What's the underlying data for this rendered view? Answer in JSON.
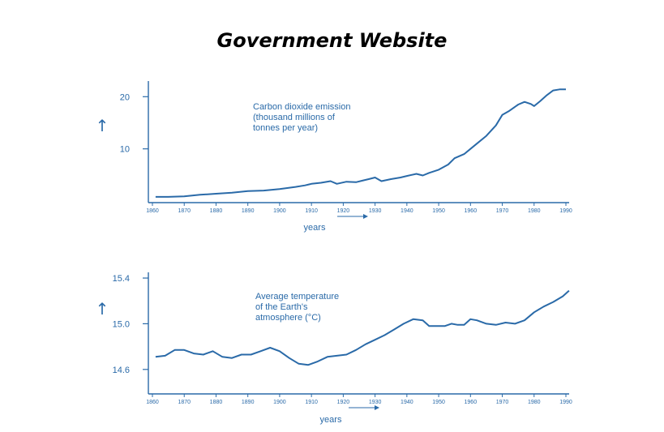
{
  "page": {
    "title": "Government Website"
  },
  "colors": {
    "line": "#2a6aa8",
    "axis": "#2a6aa8",
    "text": "#2a6aa8"
  },
  "chart_data": [
    {
      "type": "line",
      "title_lines": [
        "Carbon dioxide emission",
        "(thousand millions of",
        "tonnes per year)"
      ],
      "xlabel": "years",
      "ylabel_arrow": "↑",
      "xlim": [
        1860,
        1990
      ],
      "ylim": [
        0,
        23
      ],
      "x_ticks": [
        1860,
        1870,
        1880,
        1890,
        1900,
        1910,
        1920,
        1930,
        1940,
        1950,
        1960,
        1970,
        1980,
        1990
      ],
      "x_tick_labels": [
        "1860",
        "1870",
        "1880",
        "1890",
        "1900",
        "1910",
        "1920",
        "1930",
        "1940",
        "1950",
        "1960",
        "1970",
        "1980",
        "1990"
      ],
      "y_ticks": [
        10,
        20
      ],
      "y_tick_labels": [
        "10",
        "20"
      ],
      "series": [
        {
          "name": "Carbon dioxide emission",
          "x": [
            1861,
            1865,
            1870,
            1875,
            1880,
            1885,
            1890,
            1895,
            1900,
            1905,
            1908,
            1910,
            1913,
            1916,
            1918,
            1921,
            1924,
            1926,
            1928,
            1930,
            1932,
            1935,
            1938,
            1940,
            1943,
            1945,
            1947,
            1950,
            1953,
            1955,
            1958,
            1960,
            1962,
            1965,
            1968,
            1970,
            1972,
            1975,
            1977,
            1979,
            1980,
            1982,
            1984,
            1986,
            1988,
            1990
          ],
          "y": [
            0.8,
            0.8,
            0.9,
            1.2,
            1.4,
            1.6,
            1.9,
            2.0,
            2.3,
            2.7,
            3.0,
            3.3,
            3.5,
            3.8,
            3.3,
            3.7,
            3.6,
            3.9,
            4.2,
            4.5,
            3.8,
            4.2,
            4.5,
            4.8,
            5.2,
            4.9,
            5.4,
            6.0,
            7.0,
            8.2,
            9.0,
            10.0,
            11.0,
            12.5,
            14.5,
            16.5,
            17.2,
            18.5,
            19.0,
            18.6,
            18.2,
            19.2,
            20.3,
            21.2,
            21.4,
            21.4
          ]
        }
      ]
    },
    {
      "type": "line",
      "title_lines": [
        "Average temperature",
        "of the Earth's",
        "atmosphere (°C)"
      ],
      "xlabel": "years",
      "ylabel_arrow": "↑",
      "xlim": [
        1860,
        1990
      ],
      "ylim": [
        14.4,
        15.45
      ],
      "x_ticks": [
        1860,
        1870,
        1880,
        1890,
        1900,
        1910,
        1920,
        1930,
        1940,
        1950,
        1960,
        1970,
        1980,
        1990
      ],
      "x_tick_labels": [
        "1860",
        "1870",
        "1880",
        "1890",
        "1900",
        "1910",
        "1920",
        "1930",
        "1940",
        "1950",
        "1960",
        "1970",
        "1980",
        "1990"
      ],
      "y_ticks": [
        14.6,
        15.0,
        15.4
      ],
      "y_tick_labels": [
        "14.6",
        "15.0",
        "15.4"
      ],
      "series": [
        {
          "name": "Average temperature",
          "x": [
            1861,
            1864,
            1867,
            1870,
            1873,
            1876,
            1879,
            1882,
            1885,
            1888,
            1891,
            1894,
            1897,
            1900,
            1903,
            1906,
            1909,
            1912,
            1915,
            1918,
            1921,
            1924,
            1927,
            1930,
            1933,
            1936,
            1939,
            1942,
            1945,
            1947,
            1949,
            1952,
            1954,
            1956,
            1958,
            1960,
            1962,
            1965,
            1968,
            1971,
            1974,
            1977,
            1980,
            1983,
            1986,
            1989,
            1991
          ],
          "y": [
            14.71,
            14.72,
            14.77,
            14.77,
            14.74,
            14.73,
            14.76,
            14.71,
            14.7,
            14.73,
            14.73,
            14.76,
            14.79,
            14.76,
            14.7,
            14.65,
            14.64,
            14.67,
            14.71,
            14.72,
            14.73,
            14.77,
            14.82,
            14.86,
            14.9,
            14.95,
            15.0,
            15.04,
            15.03,
            14.98,
            14.98,
            14.98,
            15.0,
            14.99,
            14.99,
            15.04,
            15.03,
            15.0,
            14.99,
            15.01,
            15.0,
            15.03,
            15.1,
            15.15,
            15.19,
            15.24,
            15.29
          ]
        }
      ]
    }
  ]
}
